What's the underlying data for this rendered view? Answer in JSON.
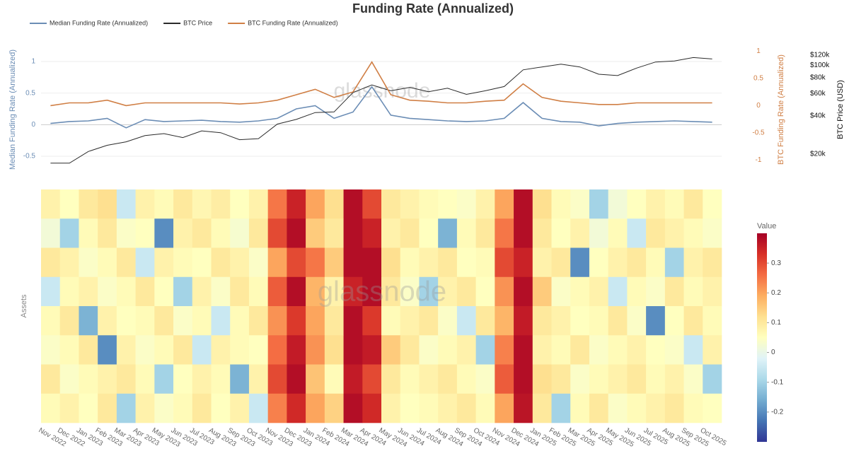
{
  "chart_data": [
    {
      "type": "line",
      "title": "Funding Rate (Annualized)",
      "watermark": "glassnode",
      "ylabel": "Median Funding Rate (Annualized)",
      "y2label": "BTC Funding Rate (Annualized)",
      "y3label": "BTC Price (USD)",
      "ylim": [
        -0.69,
        1.19
      ],
      "yticks": [
        -0.5,
        0,
        0.5,
        1
      ],
      "y2lim": [
        -1.15,
        1.03
      ],
      "y2ticks": [
        -1,
        -0.5,
        0,
        0.5,
        1
      ],
      "y3lim": [
        15500,
        133000
      ],
      "y3log": true,
      "y3ticks": [
        {
          "value": 20000,
          "label": "$20k"
        },
        {
          "value": 40000,
          "label": "$40k"
        },
        {
          "value": 60000,
          "label": "$60k"
        },
        {
          "value": 80000,
          "label": "$80k"
        },
        {
          "value": 100000,
          "label": "$100k"
        },
        {
          "value": 120000,
          "label": "$120k"
        }
      ],
      "grid": true,
      "legend": "top-left",
      "series": [
        {
          "name": "Median Funding Rate (Annualized)",
          "color": "#6b8db5",
          "values": [
            0.02,
            0.05,
            0.06,
            0.1,
            -0.05,
            0.08,
            0.05,
            0.06,
            0.07,
            0.05,
            0.04,
            0.06,
            0.1,
            0.25,
            0.3,
            0.1,
            0.2,
            0.6,
            0.15,
            0.1,
            0.08,
            0.06,
            0.05,
            0.06,
            0.1,
            0.35,
            0.1,
            0.05,
            0.04,
            -0.02,
            0.02,
            0.04,
            0.05,
            0.06,
            0.05,
            0.04
          ]
        },
        {
          "name": "BTC Price",
          "color": "#2a2a2a",
          "axis": "y3",
          "values": [
            17000,
            17000,
            21000,
            23500,
            25000,
            28000,
            29000,
            27000,
            30500,
            29500,
            26000,
            26500,
            34500,
            37500,
            42500,
            43000,
            61000,
            70000,
            63000,
            67000,
            62000,
            66000,
            59000,
            63000,
            68000,
            92000,
            97000,
            102000,
            97000,
            85000,
            83000,
            95000,
            106000,
            108000,
            115000,
            112000
          ]
        },
        {
          "name": "BTC Funding Rate (Annualized)",
          "color": "#d07f45",
          "axis": "y2",
          "values": [
            0,
            0.05,
            0.05,
            0.1,
            0,
            0.05,
            0.05,
            0.05,
            0.05,
            0.05,
            0.03,
            0.05,
            0.1,
            0.2,
            0.3,
            0.15,
            0.25,
            0.8,
            0.2,
            0.1,
            0.08,
            0.05,
            0.05,
            0.08,
            0.1,
            0.4,
            0.15,
            0.08,
            0.05,
            0.02,
            0.02,
            0.05,
            0.05,
            0.05,
            0.05,
            0.05
          ]
        }
      ]
    },
    {
      "type": "heatmap",
      "ylabel": "Assets",
      "colorbar_title": "Value",
      "x": [
        "Nov 2022",
        "Dec 2022",
        "Jan 2023",
        "Feb 2023",
        "Mar 2023",
        "Apr 2023",
        "May 2023",
        "Jun 2023",
        "Jul 2023",
        "Aug 2023",
        "Sep 2023",
        "Oct 2023",
        "Nov 2023",
        "Dec 2023",
        "Jan 2024",
        "Feb 2024",
        "Mar 2024",
        "Apr 2024",
        "May 2024",
        "Jun 2024",
        "Jul 2024",
        "Aug 2024",
        "Sep 2024",
        "Oct 2024",
        "Nov 2024",
        "Dec 2024",
        "Jan 2025",
        "Feb 2025",
        "Mar 2025",
        "Apr 2025",
        "May 2025",
        "Jun 2025",
        "Jul 2025",
        "Aug 2025",
        "Sep 2025",
        "Oct 2025"
      ],
      "zlim": [
        -0.3,
        0.4
      ],
      "zticks": [
        -0.2,
        -0.1,
        0,
        0.1,
        0.2,
        0.3
      ],
      "colorscale": [
        "#313695",
        "#4575b4",
        "#74add1",
        "#abd9e9",
        "#e0f3f8",
        "#ffffbf",
        "#fee090",
        "#fdae61",
        "#f46d43",
        "#d73027",
        "#a50026"
      ],
      "z": [
        [
          0.08,
          0.05,
          0.1,
          0.12,
          -0.05,
          0.08,
          0.06,
          0.1,
          0.07,
          0.09,
          0.05,
          0.08,
          0.25,
          0.35,
          0.2,
          0.12,
          0.38,
          0.3,
          0.1,
          0.08,
          0.06,
          0.05,
          0.04,
          0.08,
          0.2,
          0.38,
          0.12,
          0.06,
          0.04,
          -0.1,
          0.02,
          0.05,
          0.08,
          0.06,
          0.1,
          0.05
        ],
        [
          0.02,
          -0.1,
          0.06,
          0.1,
          0.04,
          0.05,
          -0.2,
          0.08,
          0.1,
          0.06,
          0.03,
          0.1,
          0.3,
          0.38,
          0.15,
          0.1,
          0.38,
          0.35,
          0.08,
          0.1,
          0.05,
          -0.15,
          0.06,
          0.1,
          0.25,
          0.38,
          0.1,
          0.05,
          0.08,
          0.02,
          0.06,
          -0.05,
          0.1,
          0.08,
          0.06,
          0.04
        ],
        [
          0.1,
          0.08,
          0.04,
          0.06,
          0.1,
          -0.05,
          0.08,
          0.06,
          0.05,
          0.1,
          0.08,
          0.04,
          0.2,
          0.3,
          0.25,
          0.15,
          0.38,
          0.38,
          0.12,
          0.06,
          0.08,
          0.1,
          0.05,
          0.06,
          0.3,
          0.35,
          0.08,
          0.1,
          -0.2,
          0.05,
          0.08,
          0.1,
          0.06,
          -0.1,
          0.08,
          0.1
        ],
        [
          -0.05,
          0.06,
          0.08,
          0.04,
          0.06,
          0.1,
          0.05,
          -0.1,
          0.08,
          0.04,
          0.1,
          0.06,
          0.28,
          0.38,
          0.18,
          0.08,
          0.35,
          0.38,
          0.1,
          0.04,
          -0.1,
          0.08,
          0.1,
          0.05,
          0.22,
          0.38,
          0.15,
          0.04,
          0.06,
          0.08,
          -0.05,
          0.06,
          0.04,
          0.1,
          0.06,
          0.08
        ],
        [
          0.06,
          0.1,
          -0.15,
          0.08,
          0.05,
          0.06,
          0.1,
          0.04,
          0.06,
          -0.05,
          0.06,
          0.1,
          0.22,
          0.32,
          0.2,
          0.1,
          0.38,
          0.32,
          0.06,
          0.08,
          0.1,
          0.04,
          -0.05,
          0.1,
          0.18,
          0.36,
          0.1,
          0.08,
          0.05,
          0.06,
          0.1,
          0.04,
          -0.2,
          0.05,
          0.1,
          0.06
        ],
        [
          0.04,
          0.06,
          0.1,
          -0.2,
          0.08,
          0.04,
          0.06,
          0.1,
          -0.05,
          0.08,
          0.06,
          0.05,
          0.26,
          0.36,
          0.22,
          0.12,
          0.38,
          0.36,
          0.15,
          0.1,
          0.04,
          0.06,
          0.08,
          -0.1,
          0.24,
          0.38,
          0.08,
          0.06,
          0.1,
          0.04,
          0.06,
          0.08,
          0.05,
          0.04,
          -0.05,
          0.08
        ],
        [
          0.1,
          0.04,
          0.06,
          0.08,
          0.1,
          0.06,
          -0.1,
          0.05,
          0.08,
          0.06,
          -0.15,
          0.08,
          0.3,
          0.38,
          0.16,
          0.06,
          0.36,
          0.3,
          0.1,
          0.06,
          0.08,
          0.1,
          0.06,
          0.04,
          0.28,
          0.38,
          0.12,
          0.1,
          0.04,
          0.06,
          0.08,
          0.1,
          0.06,
          0.08,
          0.04,
          -0.1
        ],
        [
          0.06,
          0.08,
          0.05,
          0.1,
          -0.1,
          0.08,
          0.04,
          0.06,
          0.1,
          0.05,
          0.08,
          -0.05,
          0.24,
          0.34,
          0.2,
          0.14,
          0.38,
          0.34,
          0.08,
          0.05,
          0.06,
          0.08,
          0.1,
          0.06,
          0.2,
          0.37,
          0.1,
          -0.1,
          0.06,
          0.1,
          0.04,
          0.06,
          0.08,
          0.1,
          0.06,
          0.05
        ]
      ]
    }
  ]
}
